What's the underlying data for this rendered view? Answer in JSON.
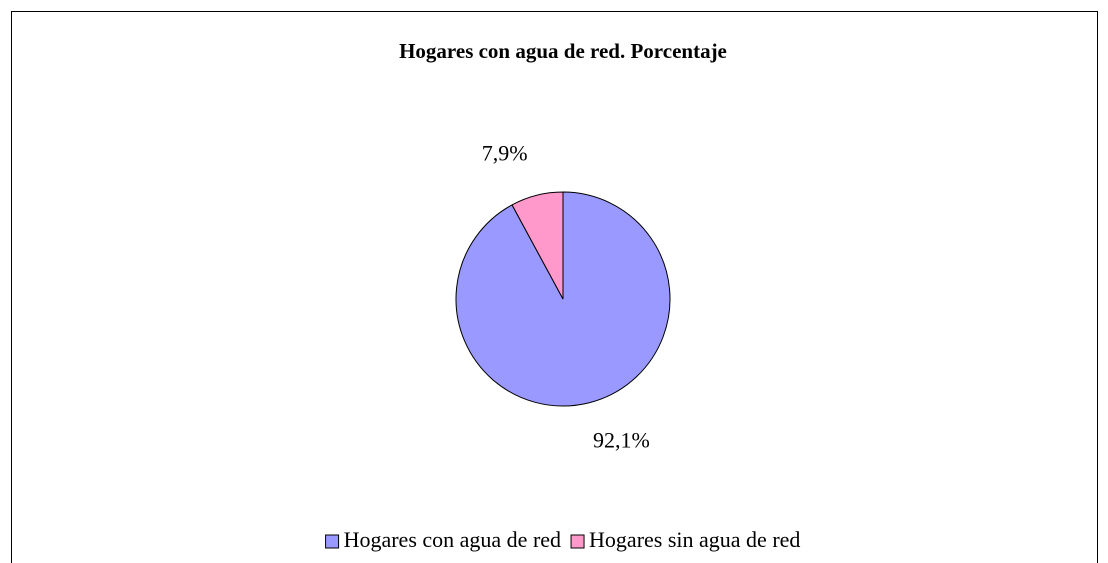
{
  "chart_data": {
    "type": "pie",
    "title": "Hogares con agua de red. Porcentaje",
    "categories": [
      "Hogares con agua de red",
      "Hogares sin agua de red"
    ],
    "values": [
      92.1,
      7.9
    ],
    "value_labels": [
      "92,1%",
      "7,9%"
    ],
    "colors": [
      "#9999ff",
      "#ff99cc"
    ],
    "legend": "bottom"
  }
}
